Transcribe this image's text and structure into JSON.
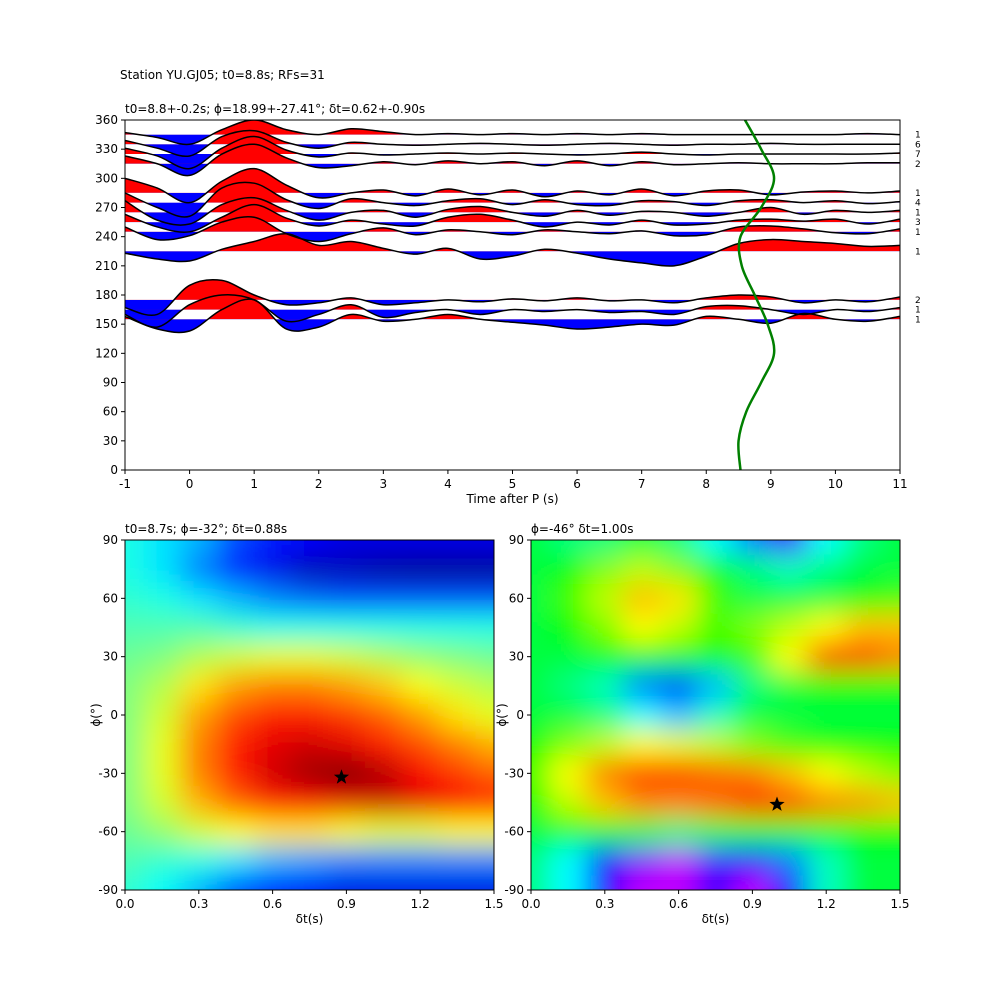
{
  "chart_data": [
    {
      "type": "wiggle",
      "suptitle": "Station YU.GJ05; t0=8.8s; RFs=31",
      "title": "t0=8.8+-0.2s; ϕ=18.99+-27.41°; δt=0.62+-0.90s",
      "xlabel": "Time after P (s)",
      "xlim": [
        -1,
        11
      ],
      "ylim": [
        0,
        360
      ],
      "xticks": [
        -1,
        0,
        1,
        2,
        3,
        4,
        5,
        6,
        7,
        8,
        9,
        10,
        11
      ],
      "yticks": [
        0,
        30,
        60,
        90,
        120,
        150,
        180,
        210,
        240,
        270,
        300,
        330,
        360
      ],
      "positive_color": "red",
      "negative_color": "blue",
      "t": [
        -1,
        -0.5,
        0,
        0.5,
        1,
        1.5,
        2,
        2.5,
        3,
        3.5,
        4,
        4.5,
        5,
        5.5,
        6,
        6.5,
        7,
        7.5,
        8,
        8.5,
        9,
        9.5,
        10,
        10.5,
        11
      ],
      "traces": [
        {
          "baz": 345,
          "count": 1,
          "values": [
            2,
            -3,
            -10,
            5,
            15,
            5,
            0,
            6,
            3,
            0,
            1,
            0,
            1,
            0,
            1,
            0,
            1,
            0,
            0,
            0,
            0,
            0,
            0,
            1,
            0
          ]
        },
        {
          "baz": 335,
          "count": 6,
          "values": [
            4,
            -4,
            -12,
            8,
            14,
            2,
            -4,
            2,
            0,
            -1,
            0,
            1,
            0,
            -1,
            0,
            1,
            0,
            -1,
            0,
            0,
            1,
            0,
            0,
            0,
            0
          ]
        },
        {
          "baz": 325,
          "count": 7,
          "values": [
            6,
            -2,
            -15,
            6,
            18,
            4,
            -3,
            1,
            -1,
            0,
            1,
            0,
            1,
            0,
            -1,
            0,
            2,
            0,
            -1,
            0,
            0,
            0,
            0,
            0,
            1
          ]
        },
        {
          "baz": 315,
          "count": 2,
          "values": [
            8,
            0,
            -12,
            10,
            20,
            6,
            -4,
            -2,
            2,
            -1,
            3,
            0,
            2,
            -2,
            3,
            -2,
            2,
            -1,
            0,
            1,
            0,
            0,
            0,
            1,
            1
          ]
        },
        {
          "baz": 285,
          "count": 1,
          "values": [
            15,
            5,
            -10,
            12,
            25,
            8,
            -5,
            0,
            3,
            -3,
            4,
            -2,
            3,
            -4,
            2,
            -2,
            4,
            -3,
            2,
            3,
            -2,
            1,
            2,
            0,
            2
          ]
        },
        {
          "baz": 275,
          "count": 4,
          "values": [
            10,
            -5,
            -14,
            15,
            20,
            3,
            -6,
            4,
            0,
            -3,
            2,
            4,
            -2,
            3,
            -2,
            -3,
            2,
            1,
            -3,
            2,
            3,
            0,
            2,
            -1,
            1
          ]
        },
        {
          "baz": 265,
          "count": 1,
          "values": [
            12,
            -8,
            -12,
            8,
            15,
            2,
            -8,
            0,
            2,
            -5,
            3,
            6,
            0,
            -4,
            2,
            -3,
            1,
            0,
            -4,
            0,
            5,
            -2,
            2,
            0,
            2
          ]
        },
        {
          "baz": 255,
          "count": 3,
          "values": [
            8,
            -5,
            -10,
            5,
            18,
            4,
            -4,
            2,
            -2,
            -4,
            5,
            8,
            2,
            -5,
            0,
            -3,
            2,
            -3,
            -2,
            2,
            3,
            1,
            3,
            -2,
            3
          ]
        },
        {
          "baz": 245,
          "count": 1,
          "values": [
            5,
            -8,
            -4,
            10,
            15,
            -2,
            -10,
            -2,
            4,
            -3,
            2,
            0,
            -3,
            2,
            0,
            -2,
            1,
            -4,
            -3,
            5,
            6,
            3,
            -1,
            -2,
            3
          ]
        },
        {
          "baz": 225,
          "count": 1,
          "values": [
            -2,
            -8,
            -10,
            2,
            10,
            18,
            6,
            10,
            3,
            -3,
            3,
            -8,
            -5,
            2,
            -2,
            -8,
            -12,
            -15,
            -5,
            8,
            12,
            10,
            8,
            5,
            6
          ]
        },
        {
          "baz": 175,
          "count": 2,
          "values": [
            -8,
            -15,
            15,
            20,
            5,
            -5,
            -3,
            2,
            -5,
            -3,
            0,
            -2,
            1,
            -1,
            2,
            -1,
            0,
            -3,
            2,
            5,
            3,
            -3,
            0,
            -2,
            3
          ]
        },
        {
          "baz": 165,
          "count": 1,
          "values": [
            -5,
            -18,
            5,
            15,
            10,
            -12,
            -5,
            5,
            -8,
            -3,
            0,
            -5,
            0,
            -2,
            0,
            -3,
            -2,
            -5,
            3,
            4,
            0,
            -5,
            0,
            -2,
            2
          ]
        },
        {
          "baz": 155,
          "count": 1,
          "values": [
            3,
            -10,
            -12,
            10,
            20,
            -10,
            -8,
            5,
            -2,
            0,
            5,
            0,
            -3,
            -6,
            -10,
            -8,
            -5,
            -6,
            3,
            0,
            -4,
            6,
            0,
            -2,
            3
          ]
        }
      ],
      "curve": {
        "color": "green",
        "x": [
          8.53,
          8.5,
          8.62,
          8.85,
          9.05,
          8.95,
          8.75,
          8.55,
          8.53,
          8.85,
          9.05,
          8.85,
          8.6
        ],
        "y": [
          0,
          30,
          60,
          90,
          120,
          150,
          180,
          210,
          240,
          270,
          300,
          330,
          360
        ]
      }
    },
    {
      "type": "heatmap",
      "colormap": "jet",
      "title": "t0=8.7s; ϕ=-32°; δt=0.88s",
      "xlabel": "δt(s)",
      "ylabel": "ϕ(°)",
      "xlim": [
        0,
        1.5
      ],
      "ylim": [
        -90,
        90
      ],
      "xticks": [
        {
          "value": 0,
          "label": "0.0"
        },
        0.3,
        0.6,
        0.9,
        1.2,
        1.5
      ],
      "yticks": [
        -90,
        -60,
        -30,
        0,
        30,
        60,
        90
      ],
      "x": [
        0,
        0.15,
        0.3,
        0.45,
        0.6,
        0.75,
        0.9,
        1.05,
        1.2,
        1.35,
        1.5
      ],
      "y": [
        90,
        75,
        60,
        45,
        30,
        15,
        0,
        -15,
        -30,
        -45,
        -60,
        -75,
        -90
      ],
      "z": [
        [
          0.4,
          0.35,
          0.3,
          0.2,
          0.15,
          0.12,
          0.1,
          0.1,
          0.1,
          0.1,
          0.1
        ],
        [
          0.4,
          0.35,
          0.25,
          0.15,
          0.1,
          0.05,
          0.05,
          0.03,
          0.02,
          0.02,
          0.02
        ],
        [
          0.42,
          0.4,
          0.35,
          0.3,
          0.25,
          0.22,
          0.2,
          0.2,
          0.2,
          0.2,
          0.2
        ],
        [
          0.45,
          0.45,
          0.45,
          0.42,
          0.4,
          0.4,
          0.4,
          0.4,
          0.4,
          0.4,
          0.4
        ],
        [
          0.48,
          0.5,
          0.55,
          0.58,
          0.6,
          0.6,
          0.58,
          0.55,
          0.52,
          0.5,
          0.48
        ],
        [
          0.5,
          0.55,
          0.65,
          0.72,
          0.75,
          0.75,
          0.72,
          0.68,
          0.62,
          0.58,
          0.55
        ],
        [
          0.5,
          0.58,
          0.72,
          0.8,
          0.85,
          0.85,
          0.82,
          0.78,
          0.72,
          0.65,
          0.6
        ],
        [
          0.5,
          0.6,
          0.75,
          0.85,
          0.9,
          0.92,
          0.9,
          0.85,
          0.8,
          0.75,
          0.7
        ],
        [
          0.5,
          0.6,
          0.75,
          0.85,
          0.92,
          0.97,
          1.0,
          0.95,
          0.88,
          0.82,
          0.78
        ],
        [
          0.5,
          0.58,
          0.7,
          0.78,
          0.85,
          0.88,
          0.9,
          0.92,
          0.9,
          0.88,
          0.85
        ],
        [
          0.48,
          0.52,
          0.58,
          0.62,
          0.65,
          0.65,
          0.62,
          0.6,
          0.6,
          0.62,
          0.62
        ],
        [
          0.45,
          0.42,
          0.4,
          0.35,
          0.3,
          0.28,
          0.25,
          0.25,
          0.25,
          0.25,
          0.25
        ],
        [
          0.42,
          0.38,
          0.3,
          0.2,
          0.15,
          0.12,
          0.1,
          0.1,
          0.1,
          0.1,
          0.1
        ]
      ],
      "marker": {
        "x": 0.88,
        "y": -32
      }
    },
    {
      "type": "heatmap",
      "colormap": "hsv",
      "title": "ϕ=-46° δt=1.00s",
      "xlabel": "δt(s)",
      "ylabel": "ϕ(°)",
      "xlim": [
        0,
        1.5
      ],
      "ylim": [
        -90,
        90
      ],
      "xticks": [
        {
          "value": 0,
          "label": "0.0"
        },
        0.3,
        0.6,
        0.9,
        1.2,
        1.5
      ],
      "yticks": [
        -90,
        -60,
        -30,
        0,
        30,
        60,
        90
      ],
      "x": [
        0,
        0.15,
        0.3,
        0.45,
        0.6,
        0.75,
        0.9,
        1.05,
        1.2,
        1.35,
        1.5
      ],
      "y": [
        90,
        75,
        60,
        45,
        30,
        15,
        0,
        -15,
        -30,
        -45,
        -60,
        -75,
        -90
      ],
      "z": [
        [
          0.55,
          0.5,
          0.5,
          0.55,
          0.5,
          0.4,
          0.3,
          0.15,
          0.4,
          0.5,
          0.55
        ],
        [
          0.55,
          0.6,
          0.7,
          0.75,
          0.7,
          0.6,
          0.5,
          0.45,
          0.5,
          0.55,
          0.55
        ],
        [
          0.55,
          0.65,
          0.75,
          0.85,
          0.82,
          0.65,
          0.55,
          0.55,
          0.55,
          0.6,
          0.65
        ],
        [
          0.55,
          0.6,
          0.7,
          0.8,
          0.75,
          0.65,
          0.7,
          0.75,
          0.8,
          0.85,
          0.85
        ],
        [
          0.55,
          0.55,
          0.6,
          0.6,
          0.6,
          0.6,
          0.65,
          0.8,
          0.95,
          0.95,
          0.9
        ],
        [
          0.55,
          0.5,
          0.45,
          0.3,
          0.25,
          0.35,
          0.5,
          0.55,
          0.6,
          0.6,
          0.6
        ],
        [
          0.55,
          0.55,
          0.5,
          0.4,
          0.35,
          0.45,
          0.55,
          0.55,
          0.55,
          0.55,
          0.55
        ],
        [
          0.6,
          0.7,
          0.75,
          0.8,
          0.78,
          0.75,
          0.7,
          0.65,
          0.6,
          0.6,
          0.6
        ],
        [
          0.65,
          0.8,
          0.9,
          0.95,
          0.95,
          0.92,
          0.9,
          0.85,
          0.8,
          0.75,
          0.7
        ],
        [
          0.6,
          0.75,
          0.85,
          0.9,
          0.9,
          0.92,
          0.97,
          0.95,
          0.9,
          0.88,
          0.85
        ],
        [
          0.55,
          0.6,
          0.6,
          0.55,
          0.5,
          0.55,
          0.6,
          0.6,
          0.6,
          0.6,
          0.6
        ],
        [
          0.5,
          0.4,
          0.2,
          0.1,
          0.05,
          0.15,
          0.2,
          0.3,
          0.45,
          0.55,
          0.55
        ],
        [
          0.5,
          0.4,
          0.2,
          0.05,
          0.05,
          0.15,
          0.05,
          0.2,
          0.45,
          0.55,
          0.55
        ]
      ],
      "marker": {
        "x": 1.0,
        "y": -46
      }
    }
  ]
}
